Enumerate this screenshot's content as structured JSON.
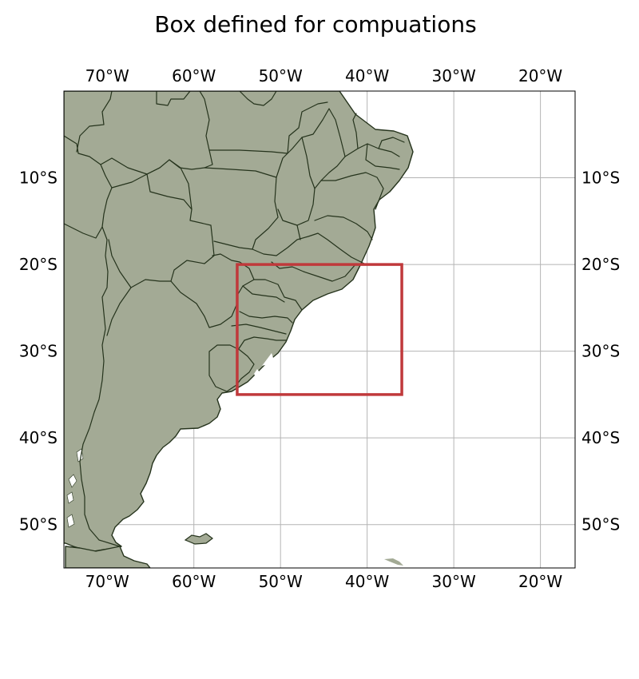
{
  "title": "Box defined for compuations",
  "colors": {
    "land": "#a3aa95",
    "coastline": "#25331c",
    "gridline": "#b4b4b4",
    "box": "#c0393b",
    "lake": "#ffffff"
  },
  "map": {
    "projection": "PlateCarree",
    "lon_range": [
      -75,
      -16
    ],
    "lat_range": [
      -55,
      0
    ],
    "gridlines": true,
    "lon_ticks": [
      {
        "value": -70,
        "label": "70°W"
      },
      {
        "value": -60,
        "label": "60°W"
      },
      {
        "value": -50,
        "label": "50°W"
      },
      {
        "value": -40,
        "label": "40°W"
      },
      {
        "value": -30,
        "label": "30°W"
      },
      {
        "value": -20,
        "label": "20°W"
      }
    ],
    "lat_ticks": [
      {
        "value": -10,
        "label": "10°S"
      },
      {
        "value": -20,
        "label": "20°S"
      },
      {
        "value": -30,
        "label": "30°S"
      },
      {
        "value": -40,
        "label": "40°S"
      },
      {
        "value": -50,
        "label": "50°S"
      }
    ],
    "box": {
      "lon_min": -55,
      "lon_max": -36,
      "lat_min": -35,
      "lat_max": -20
    }
  }
}
